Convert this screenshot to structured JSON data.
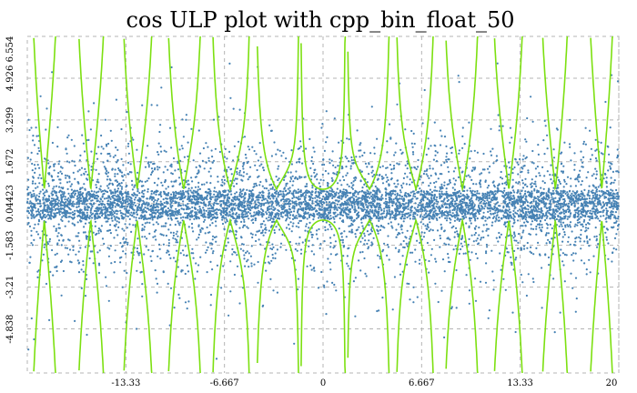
{
  "chart_data": {
    "type": "scatter",
    "title": "cos ULP plot with cpp_bin_float_50",
    "xlabel": "",
    "ylabel": "",
    "xlim": [
      -20,
      20
    ],
    "ylim": [
      -6.554,
      6.554
    ],
    "grid": true,
    "x_ticks": [
      -13.33,
      -6.667,
      0,
      6.667,
      13.33,
      20
    ],
    "x_tick_labels": [
      "-13.33",
      "-6.667",
      "0",
      "6.667",
      "13.33",
      "20"
    ],
    "y_ticks": [
      6.554,
      4.926,
      3.299,
      1.672,
      0.04423,
      -1.583,
      -3.21,
      -4.838
    ],
    "y_tick_labels": [
      "6.554",
      "4.926",
      "3.299",
      "1.672",
      "0.04423",
      "-1.583",
      "-3.21",
      "-4.838"
    ],
    "colors": {
      "points": "#4682b4",
      "condition_envelope": "#7ce010",
      "grid": "#b4b4b4"
    },
    "series": [
      {
        "kind": "ulp_error_points",
        "point_count": 7000,
        "core_band": [
          -0.55,
          0.55
        ],
        "typical_spread": [
          -2.5,
          2.5
        ],
        "max_spread": [
          -6.2,
          6.2
        ]
      },
      {
        "kind": "condition_number_envelope",
        "x_min": [
          -19.5,
          -17.3,
          -14.2,
          -11.0,
          -7.85,
          -4.72,
          -1.55,
          0,
          1.55,
          4.72,
          7.85,
          11.0,
          14.2,
          17.3,
          19.5
        ],
        "floor_levels": [
          0.6,
          0.6,
          0.6,
          0.6,
          0.6,
          0.6,
          0.6,
          0.6,
          0.6,
          0.6,
          0.6,
          0.6,
          0.6,
          0.6,
          0.6
        ],
        "clip": 6.554
      }
    ]
  }
}
